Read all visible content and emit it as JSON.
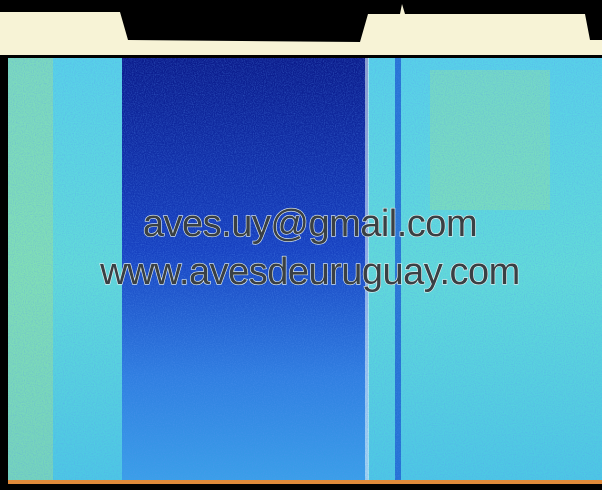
{
  "watermark": {
    "email": "aves.uy@gmail.com",
    "website": "www.avesdeuruguay.com"
  }
}
